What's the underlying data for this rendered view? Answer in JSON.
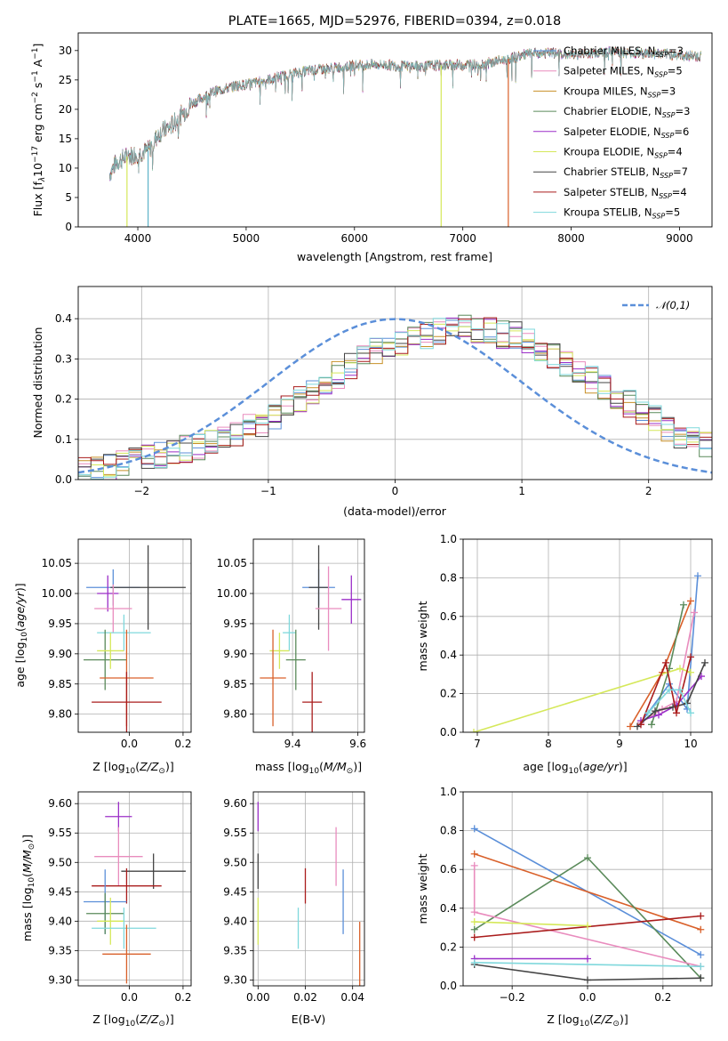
{
  "chart_data": [
    {
      "id": "spectrum",
      "type": "line",
      "title": "PLATE=1665, MJD=52976, FIBERID=0394, z=0.018",
      "xlabel": "wavelength [Angstrom, rest frame]",
      "ylabel": "Flux [f_λ 10^-17 erg cm^-2 s^-1 A^-1]",
      "ylabel_parts": {
        "a": "Flux [f",
        "b": "λ",
        "c": "10",
        "d": "−17",
        "e": " erg cm",
        "f": "−2",
        "g": " s",
        "h": "−1",
        "i": " A",
        "j": "−1",
        "k": "]"
      },
      "xlim": [
        3450,
        9300
      ],
      "ylim": [
        0,
        33
      ],
      "xticks": [
        "4000",
        "5000",
        "6000",
        "7000",
        "8000",
        "9000"
      ],
      "yticks": [
        "0",
        "5",
        "10",
        "15",
        "20",
        "25",
        "30"
      ],
      "spectrum_anchors": [
        [
          3740,
          9
        ],
        [
          3800,
          11
        ],
        [
          3900,
          12
        ],
        [
          4000,
          12.5
        ],
        [
          4100,
          13
        ],
        [
          4200,
          16
        ],
        [
          4300,
          17
        ],
        [
          4400,
          19
        ],
        [
          4500,
          21
        ],
        [
          4600,
          22
        ],
        [
          4700,
          23
        ],
        [
          4800,
          23.5
        ],
        [
          4900,
          24
        ],
        [
          5000,
          24.2
        ],
        [
          5200,
          25
        ],
        [
          5400,
          26
        ],
        [
          5600,
          26.7
        ],
        [
          5800,
          27
        ],
        [
          6000,
          27.5
        ],
        [
          6200,
          27.6
        ],
        [
          6400,
          27.4
        ],
        [
          6600,
          27.3
        ],
        [
          6800,
          27.5
        ],
        [
          7000,
          27.6
        ],
        [
          7200,
          27.7
        ],
        [
          7400,
          28.5
        ],
        [
          7600,
          29.4
        ],
        [
          7800,
          29.6
        ],
        [
          8000,
          29.3
        ],
        [
          8200,
          29.6
        ],
        [
          8400,
          29.8
        ],
        [
          8600,
          29.5
        ],
        [
          8800,
          29.5
        ],
        [
          9000,
          29.2
        ],
        [
          9200,
          29
        ]
      ],
      "dropouts": [
        {
          "x": 3900,
          "color": "#d5e85a"
        },
        {
          "x": 4095,
          "color": "#5fb3c8"
        },
        {
          "x": 6800,
          "color": "#d5e85a"
        },
        {
          "x": 7420,
          "color": "#d9602a"
        }
      ],
      "series": [
        {
          "name_parts": {
            "a": "Chabrier MILES, N",
            "b": "SSP",
            "c": "=3"
          },
          "color": "#5b8fd9"
        },
        {
          "name_parts": {
            "a": "Salpeter MILES, N",
            "b": "SSP",
            "c": "=5"
          },
          "color": "#e98cbe"
        },
        {
          "name_parts": {
            "a": "Kroupa MILES, N",
            "b": "SSP",
            "c": "=3"
          },
          "color": "#c89028"
        },
        {
          "name_parts": {
            "a": "Chabrier ELODIE, N",
            "b": "SSP",
            "c": "=3"
          },
          "color": "#5a8a5a"
        },
        {
          "name_parts": {
            "a": "Salpeter ELODIE, N",
            "b": "SSP",
            "c": "=6"
          },
          "color": "#9b2fc8"
        },
        {
          "name_parts": {
            "a": "Kroupa ELODIE, N",
            "b": "SSP",
            "c": "=4"
          },
          "color": "#d5e85a"
        },
        {
          "name_parts": {
            "a": "Chabrier STELIB, N",
            "b": "SSP",
            "c": "=7"
          },
          "color": "#444444"
        },
        {
          "name_parts": {
            "a": "Salpeter STELIB, N",
            "b": "SSP",
            "c": "=4"
          },
          "color": "#aa1c1c"
        },
        {
          "name_parts": {
            "a": "Kroupa STELIB, N",
            "b": "SSP",
            "c": "=5"
          },
          "color": "#7fd8dc"
        }
      ]
    },
    {
      "id": "residuals",
      "type": "histogram",
      "xlabel": "(data-model)/error",
      "ylabel": "Normed distribution",
      "xlim": [
        -2.5,
        2.5
      ],
      "ylim": [
        0,
        0.48
      ],
      "xticks": [
        "−2",
        "−1",
        "0",
        "1",
        "2"
      ],
      "yticks": [
        "0.0",
        "0.1",
        "0.2",
        "0.3",
        "0.4"
      ],
      "legend": "𝒩(0,1)",
      "normal_color": "#5b8fd9",
      "bin_width": 0.1,
      "bin_start": -2.5,
      "base_values": [
        0.02,
        0.025,
        0.03,
        0.04,
        0.05,
        0.055,
        0.06,
        0.065,
        0.075,
        0.08,
        0.09,
        0.1,
        0.11,
        0.13,
        0.14,
        0.16,
        0.18,
        0.2,
        0.22,
        0.24,
        0.26,
        0.28,
        0.3,
        0.32,
        0.33,
        0.34,
        0.35,
        0.36,
        0.37,
        0.38,
        0.38,
        0.37,
        0.37,
        0.36,
        0.36,
        0.35,
        0.33,
        0.31,
        0.29,
        0.27,
        0.25,
        0.23,
        0.21,
        0.19,
        0.17,
        0.15,
        0.13,
        0.11,
        0.1,
        0.09
      ],
      "spread": 0.035
    },
    {
      "id": "age_vs_z",
      "type": "errorbar",
      "xlabel": "Z [log10(Z/Z⊙)]",
      "ylabel": "age [log10(age/yr)]",
      "xlim": [
        -0.19,
        0.23
      ],
      "ylim": [
        9.77,
        10.09
      ],
      "xticks": [
        "0.0",
        "0.2"
      ],
      "yticks": [
        "9.80",
        "9.85",
        "9.90",
        "9.95",
        "10.00",
        "10.05"
      ],
      "points": [
        {
          "x": -0.06,
          "y": 10.01,
          "xerr": 0.1,
          "yerr": 0.03,
          "color": "#5b8fd9"
        },
        {
          "x": -0.08,
          "y": 10.0,
          "xerr": 0.04,
          "yerr": 0.03,
          "color": "#9b2fc8"
        },
        {
          "x": 0.07,
          "y": 10.01,
          "xerr": 0.14,
          "yerr": 0.07,
          "color": "#444444"
        },
        {
          "x": -0.06,
          "y": 9.975,
          "xerr": 0.07,
          "yerr": 0.04,
          "color": "#e98cbe"
        },
        {
          "x": -0.02,
          "y": 9.935,
          "xerr": 0.1,
          "yerr": 0.03,
          "color": "#7fd8dc"
        },
        {
          "x": -0.09,
          "y": 9.89,
          "xerr": 0.08,
          "yerr": 0.05,
          "color": "#5a8a5a"
        },
        {
          "x": -0.07,
          "y": 9.905,
          "xerr": 0.05,
          "yerr": 0.03,
          "color": "#d5e85a"
        },
        {
          "x": -0.01,
          "y": 9.86,
          "xerr": 0.1,
          "yerr": 0.08,
          "color": "#d9602a"
        },
        {
          "x": -0.01,
          "y": 9.82,
          "xerr": 0.13,
          "yerr": 0.05,
          "color": "#aa1c1c"
        }
      ]
    },
    {
      "id": "age_vs_mass",
      "type": "errorbar",
      "xlabel": "mass [log10(M/M⊙)]",
      "ylabel": "",
      "xlim": [
        9.28,
        9.62
      ],
      "ylim": [
        9.77,
        10.09
      ],
      "xticks": [
        "9.4",
        "9.6"
      ],
      "yticks": [
        "9.80",
        "9.85",
        "9.90",
        "9.95",
        "10.00",
        "10.05"
      ],
      "points": [
        {
          "x": 9.48,
          "y": 10.01,
          "xerr": 0.05,
          "yerr": 0.03,
          "color": "#5b8fd9"
        },
        {
          "x": 9.58,
          "y": 9.99,
          "xerr": 0.03,
          "yerr": 0.04,
          "color": "#9b2fc8"
        },
        {
          "x": 9.48,
          "y": 10.01,
          "xerr": 0.03,
          "yerr": 0.07,
          "color": "#444444"
        },
        {
          "x": 9.51,
          "y": 9.975,
          "xerr": 0.04,
          "yerr": 0.07,
          "color": "#e98cbe"
        },
        {
          "x": 9.39,
          "y": 9.935,
          "xerr": 0.02,
          "yerr": 0.03,
          "color": "#7fd8dc"
        },
        {
          "x": 9.41,
          "y": 9.89,
          "xerr": 0.03,
          "yerr": 0.05,
          "color": "#5a8a5a"
        },
        {
          "x": 9.36,
          "y": 9.905,
          "xerr": 0.03,
          "yerr": 0.03,
          "color": "#d5e85a"
        },
        {
          "x": 9.34,
          "y": 9.86,
          "xerr": 0.04,
          "yerr": 0.08,
          "color": "#d9602a"
        },
        {
          "x": 9.46,
          "y": 9.82,
          "xerr": 0.03,
          "yerr": 0.05,
          "color": "#aa1c1c"
        }
      ]
    },
    {
      "id": "weight_vs_age",
      "type": "line",
      "xlabel": "age [log10(age/yr)]",
      "ylabel": "mass weight",
      "xlim": [
        6.8,
        10.3
      ],
      "ylim": [
        0,
        1.0
      ],
      "xticks": [
        "7",
        "8",
        "9",
        "10"
      ],
      "yticks": [
        "0.0",
        "0.2",
        "0.4",
        "0.6",
        "0.8",
        "1.0"
      ],
      "series": [
        {
          "color": "#5b8fd9",
          "x": [
            9.3,
            9.7,
            9.95,
            10.1
          ],
          "y": [
            0.05,
            0.25,
            0.12,
            0.81
          ]
        },
        {
          "color": "#d9602a",
          "x": [
            9.15,
            9.6,
            10.0
          ],
          "y": [
            0.03,
            0.31,
            0.68
          ]
        },
        {
          "color": "#e98cbe",
          "x": [
            9.3,
            9.6,
            9.8,
            10.05
          ],
          "y": [
            0.05,
            0.12,
            0.16,
            0.62
          ]
        },
        {
          "color": "#5a8a5a",
          "x": [
            9.45,
            9.7,
            9.9
          ],
          "y": [
            0.04,
            0.33,
            0.66
          ]
        },
        {
          "color": "#9b2fc8",
          "x": [
            9.3,
            9.55,
            9.8,
            10.15
          ],
          "y": [
            0.06,
            0.09,
            0.14,
            0.29
          ]
        },
        {
          "color": "#d5e85a",
          "x": [
            6.95,
            9.85,
            10.0
          ],
          "y": [
            0.0,
            0.33,
            0.31
          ]
        },
        {
          "color": "#444444",
          "x": [
            9.25,
            9.5,
            9.75,
            9.95,
            10.2
          ],
          "y": [
            0.03,
            0.11,
            0.13,
            0.15,
            0.36
          ]
        },
        {
          "color": "#aa1c1c",
          "x": [
            9.3,
            9.65,
            9.8,
            10.0
          ],
          "y": [
            0.04,
            0.36,
            0.1,
            0.39
          ]
        },
        {
          "color": "#7fd8dc",
          "x": [
            9.4,
            9.7,
            9.85,
            10.0
          ],
          "y": [
            0.1,
            0.22,
            0.22,
            0.1
          ]
        }
      ]
    },
    {
      "id": "mass_vs_z",
      "type": "errorbar",
      "xlabel": "Z [log10(Z/Z⊙)]",
      "ylabel": "mass [log10(M/M⊙)]",
      "xlim": [
        -0.19,
        0.23
      ],
      "ylim": [
        9.29,
        9.62
      ],
      "xticks": [
        "0.0",
        "0.2"
      ],
      "yticks": [
        "9.30",
        "9.35",
        "9.40",
        "9.45",
        "9.50",
        "9.55",
        "9.60"
      ],
      "points": [
        {
          "x": -0.04,
          "y": 9.578,
          "xerr": 0.05,
          "yerr": 0.025,
          "color": "#9b2fc8"
        },
        {
          "x": -0.04,
          "y": 9.51,
          "xerr": 0.09,
          "yerr": 0.05,
          "color": "#e98cbe"
        },
        {
          "x": 0.09,
          "y": 9.485,
          "xerr": 0.12,
          "yerr": 0.03,
          "color": "#444444"
        },
        {
          "x": -0.01,
          "y": 9.46,
          "xerr": 0.13,
          "yerr": 0.03,
          "color": "#aa1c1c"
        },
        {
          "x": -0.09,
          "y": 9.433,
          "xerr": 0.08,
          "yerr": 0.055,
          "color": "#5b8fd9"
        },
        {
          "x": -0.09,
          "y": 9.413,
          "xerr": 0.07,
          "yerr": 0.035,
          "color": "#5a8a5a"
        },
        {
          "x": -0.07,
          "y": 9.4,
          "xerr": 0.05,
          "yerr": 0.04,
          "color": "#d5e85a"
        },
        {
          "x": -0.02,
          "y": 9.388,
          "xerr": 0.12,
          "yerr": 0.035,
          "color": "#7fd8dc"
        },
        {
          "x": -0.01,
          "y": 9.344,
          "xerr": 0.09,
          "yerr": 0.05,
          "color": "#d9602a"
        }
      ]
    },
    {
      "id": "mass_vs_ebv",
      "type": "errorbar",
      "xlabel": "E(B-V)",
      "ylabel": "",
      "xlim": [
        -0.002,
        0.045
      ],
      "ylim": [
        9.29,
        9.62
      ],
      "xticks": [
        "0.00",
        "0.02",
        "0.04"
      ],
      "yticks": [
        "9.30",
        "9.35",
        "9.40",
        "9.45",
        "9.50",
        "9.55",
        "9.60"
      ],
      "points": [
        {
          "x": 0.0,
          "y": 9.578,
          "xerr": 0,
          "yerr": 0.025,
          "color": "#9b2fc8"
        },
        {
          "x": 0.0,
          "y": 9.485,
          "xerr": 0,
          "yerr": 0.03,
          "color": "#444444"
        },
        {
          "x": 0.0,
          "y": 9.4,
          "xerr": 0,
          "yerr": 0.04,
          "color": "#d5e85a"
        },
        {
          "x": 0.033,
          "y": 9.51,
          "xerr": 0,
          "yerr": 0.05,
          "color": "#e98cbe"
        },
        {
          "x": 0.02,
          "y": 9.46,
          "xerr": 0,
          "yerr": 0.03,
          "color": "#aa1c1c"
        },
        {
          "x": 0.036,
          "y": 9.433,
          "xerr": 0,
          "yerr": 0.055,
          "color": "#5b8fd9"
        },
        {
          "x": 0.017,
          "y": 9.388,
          "xerr": 0,
          "yerr": 0.035,
          "color": "#7fd8dc"
        },
        {
          "x": 0.043,
          "y": 9.344,
          "xerr": 0,
          "yerr": 0.055,
          "color": "#d9602a"
        }
      ]
    },
    {
      "id": "weight_vs_z",
      "type": "line",
      "xlabel": "Z [log10(Z/Z⊙)]",
      "ylabel": "mass weight",
      "xlim": [
        -0.33,
        0.33
      ],
      "ylim": [
        0,
        1.0
      ],
      "xticks": [
        "−0.2",
        "0.0",
        "0.2"
      ],
      "yticks": [
        "0.0",
        "0.2",
        "0.4",
        "0.6",
        "0.8",
        "1.0"
      ],
      "series": [
        {
          "color": "#5b8fd9",
          "x": [
            -0.3,
            0.3
          ],
          "y": [
            0.81,
            0.16
          ]
        },
        {
          "color": "#d9602a",
          "x": [
            -0.3,
            0.3
          ],
          "y": [
            0.68,
            0.29
          ]
        },
        {
          "color": "#5a8a5a",
          "x": [
            -0.3,
            0.0,
            0.3
          ],
          "y": [
            0.29,
            0.66,
            0.04
          ]
        },
        {
          "color": "#e98cbe",
          "x": [
            -0.3,
            -0.3,
            0.3
          ],
          "y": [
            0.62,
            0.38,
            0.1
          ]
        },
        {
          "color": "#aa1c1c",
          "x": [
            -0.3,
            0.3
          ],
          "y": [
            0.25,
            0.36
          ]
        },
        {
          "color": "#d5e85a",
          "x": [
            -0.3,
            0.0
          ],
          "y": [
            0.33,
            0.31
          ]
        },
        {
          "color": "#9b2fc8",
          "x": [
            -0.3,
            0.0
          ],
          "y": [
            0.14,
            0.14
          ]
        },
        {
          "color": "#444444",
          "x": [
            -0.3,
            0.0,
            0.3
          ],
          "y": [
            0.11,
            0.03,
            0.04
          ]
        },
        {
          "color": "#7fd8dc",
          "x": [
            -0.3,
            0.3
          ],
          "y": [
            0.12,
            0.1
          ]
        }
      ]
    }
  ]
}
